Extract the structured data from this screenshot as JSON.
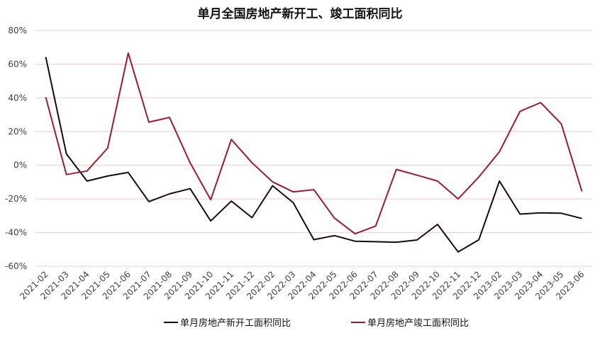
{
  "chart_data": {
    "type": "line",
    "title": "单月全国房地产新开工、竣工面积同比",
    "xlabel": "",
    "ylabel": "",
    "x": [
      "2021-02",
      "2021-03",
      "2021-04",
      "2021-05",
      "2021-06",
      "2021-07",
      "2021-08",
      "2021-09",
      "2021-10",
      "2021-11",
      "2021-12",
      "2022-02",
      "2022-03",
      "2022-04",
      "2022-05",
      "2022-06",
      "2022-07",
      "2022-08",
      "2022-09",
      "2022-10",
      "2022-11",
      "2022-12",
      "2023-02",
      "2023-03",
      "2023-04",
      "2023-05",
      "2023-06"
    ],
    "ylim": [
      -60,
      80
    ],
    "yticks": [
      -60,
      -40,
      -20,
      0,
      20,
      40,
      60,
      80
    ],
    "ytick_labels": [
      "-60%",
      "-40%",
      "-20%",
      "0%",
      "20%",
      "40%",
      "60%",
      "80%"
    ],
    "grid": true,
    "legend_position": "bottom",
    "series": [
      {
        "name": "单月房地产新开工面积同比",
        "color": "#1a0a0a",
        "values": [
          64.3,
          6.8,
          -9.4,
          -6.4,
          -4.3,
          -21.6,
          -17.0,
          -13.9,
          -33.1,
          -21.3,
          -31.1,
          -12.2,
          -22.2,
          -44.2,
          -41.8,
          -45.1,
          -45.4,
          -45.7,
          -44.4,
          -35.1,
          -51.5,
          -44.3,
          -9.4,
          -29.0,
          -28.3,
          -28.5,
          -31.6
        ]
      },
      {
        "name": "单月房地产竣工面积同比",
        "color": "#9b1b30",
        "values": [
          40.4,
          -5.5,
          -3.4,
          10.2,
          66.6,
          25.6,
          28.4,
          1.4,
          -20.5,
          15.3,
          1.5,
          -9.9,
          -15.8,
          -14.5,
          -31.4,
          -40.7,
          -36.1,
          -2.5,
          -5.9,
          -9.4,
          -20.0,
          -7.0,
          8.0,
          32.0,
          37.2,
          24.6,
          -15.5
        ]
      }
    ]
  }
}
